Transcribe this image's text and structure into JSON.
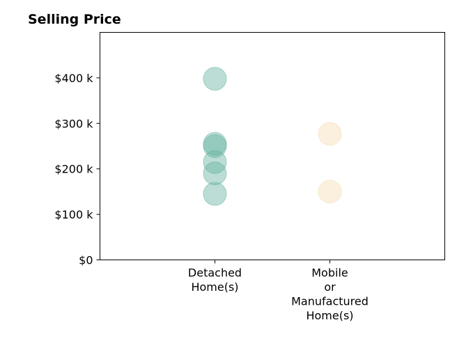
{
  "chart_data": {
    "type": "scatter",
    "title": "Selling Price",
    "xlabel": "",
    "ylabel": "",
    "categories": [
      [
        "Detached",
        "Home(s)"
      ],
      [
        "Mobile",
        "or",
        "Manufactured",
        "Home(s)"
      ]
    ],
    "ylim": [
      0,
      500000
    ],
    "yticks": [
      {
        "value": 0,
        "label": "$0"
      },
      {
        "value": 100000,
        "label": "$100 k"
      },
      {
        "value": 200000,
        "label": "$200 k"
      },
      {
        "value": 300000,
        "label": "$300 k"
      },
      {
        "value": 400000,
        "label": "$400 k"
      }
    ],
    "grid": false,
    "series": [
      {
        "category": 0,
        "color": "#69b3a2",
        "values": [
          398000,
          255000,
          250000,
          215000,
          190000,
          145000
        ]
      },
      {
        "category": 1,
        "color": "#f5deb3",
        "values": [
          277000,
          150000
        ]
      }
    ]
  }
}
